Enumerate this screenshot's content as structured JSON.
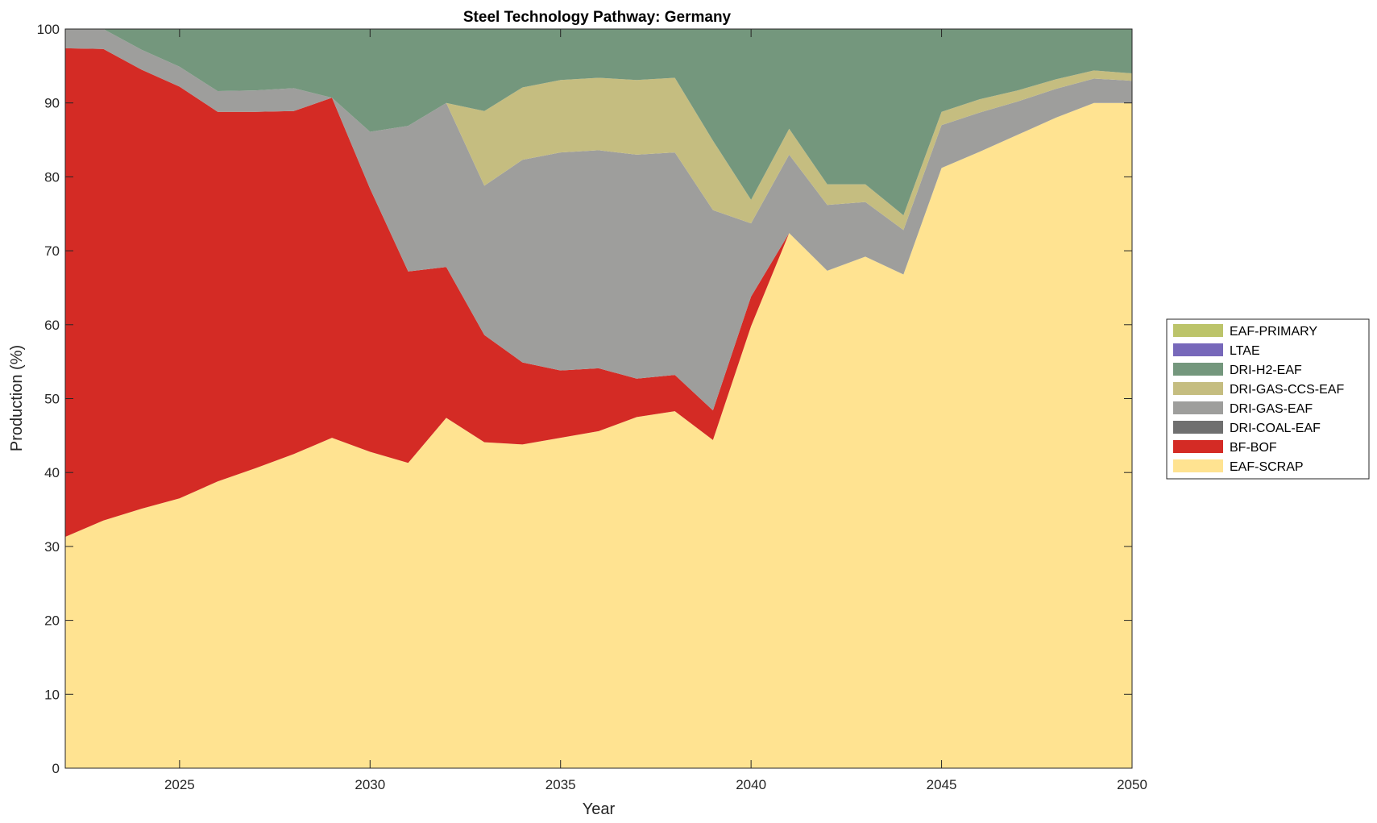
{
  "chart_data": {
    "type": "area",
    "stacked": true,
    "title": "Steel Technology Pathway: Germany",
    "xlabel": "Year",
    "ylabel": "Production (%)",
    "xlim": [
      2022,
      2050
    ],
    "ylim": [
      0,
      100
    ],
    "xticks": [
      2025,
      2030,
      2035,
      2040,
      2045,
      2050
    ],
    "yticks": [
      0,
      10,
      20,
      30,
      40,
      50,
      60,
      70,
      80,
      90,
      100
    ],
    "grid": false,
    "legend_position": "right",
    "x": [
      2022,
      2023,
      2024,
      2025,
      2026,
      2027,
      2028,
      2029,
      2030,
      2031,
      2032,
      2033,
      2034,
      2035,
      2036,
      2037,
      2038,
      2039,
      2040,
      2041,
      2042,
      2043,
      2044,
      2045,
      2046,
      2047,
      2048,
      2049,
      2050
    ],
    "series": [
      {
        "name": "EAF-SCRAP",
        "color": "#FFE391",
        "values": [
          31.3,
          33.5,
          35.1,
          36.5,
          38.8,
          40.6,
          42.5,
          44.7,
          42.8,
          41.3,
          47.4,
          44.1,
          43.8,
          44.7,
          45.6,
          47.5,
          48.3,
          44.4,
          59.8,
          72.4,
          67.3,
          69.2,
          66.8,
          81.2,
          83.4,
          85.7,
          88.0,
          90.0,
          90.0
        ]
      },
      {
        "name": "BF-BOF",
        "color": "#D42B25",
        "values": [
          66.1,
          63.8,
          59.4,
          55.7,
          50.0,
          48.2,
          46.4,
          46.0,
          35.6,
          25.9,
          20.4,
          14.5,
          11.1,
          9.1,
          8.5,
          5.2,
          4.9,
          4.0,
          4.0,
          0.0,
          0.0,
          0.0,
          0.0,
          0.0,
          0.0,
          0.0,
          0.0,
          0.0,
          0.0
        ]
      },
      {
        "name": "DRI-COAL-EAF",
        "color": "#6F6F6F",
        "values": [
          0,
          0,
          0,
          0,
          0,
          0,
          0,
          0,
          0,
          0,
          0,
          0,
          0,
          0,
          0,
          0,
          0,
          0,
          0,
          0,
          0,
          0,
          0,
          0,
          0,
          0,
          0,
          0,
          0
        ]
      },
      {
        "name": "DRI-GAS-EAF",
        "color": "#9E9E9C",
        "values": [
          2.6,
          2.7,
          2.7,
          2.7,
          2.8,
          2.9,
          3.1,
          0.0,
          7.7,
          19.7,
          22.2,
          20.2,
          27.4,
          29.5,
          29.5,
          30.3,
          30.1,
          27.1,
          9.9,
          10.6,
          8.9,
          7.4,
          6.0,
          5.8,
          5.3,
          4.5,
          3.9,
          3.3,
          3.0
        ]
      },
      {
        "name": "DRI-GAS-CCS-EAF",
        "color": "#C5BD80",
        "values": [
          0,
          0,
          0,
          0,
          0,
          0,
          0,
          0,
          0,
          0,
          0,
          10.1,
          9.8,
          9.8,
          9.8,
          10.1,
          10.1,
          9.4,
          3.2,
          3.5,
          2.8,
          2.4,
          2.0,
          1.8,
          1.8,
          1.5,
          1.3,
          1.1,
          1.0
        ]
      },
      {
        "name": "DRI-H2-EAF",
        "color": "#74977D",
        "values": [
          0.0,
          0.0,
          2.8,
          5.1,
          8.4,
          8.3,
          8.0,
          9.3,
          13.9,
          13.1,
          10.0,
          11.1,
          7.9,
          6.9,
          6.6,
          6.9,
          6.6,
          15.1,
          23.1,
          13.5,
          21.0,
          21.0,
          25.2,
          11.2,
          9.5,
          8.3,
          6.8,
          5.6,
          6.0
        ]
      },
      {
        "name": "LTAE",
        "color": "#7768BA",
        "values": [
          0,
          0,
          0,
          0,
          0,
          0,
          0,
          0,
          0,
          0,
          0,
          0,
          0,
          0,
          0,
          0,
          0,
          0,
          0,
          0,
          0,
          0,
          0,
          0,
          0,
          0,
          0,
          0,
          0
        ]
      },
      {
        "name": "EAF-PRIMARY",
        "color": "#BCC46A",
        "values": [
          0,
          0,
          0,
          0,
          0,
          0,
          0,
          0,
          0,
          0,
          0,
          0,
          0,
          0,
          0,
          0,
          0,
          0,
          0,
          0,
          0,
          0,
          0,
          0,
          0,
          0,
          0,
          0,
          0
        ]
      }
    ]
  }
}
